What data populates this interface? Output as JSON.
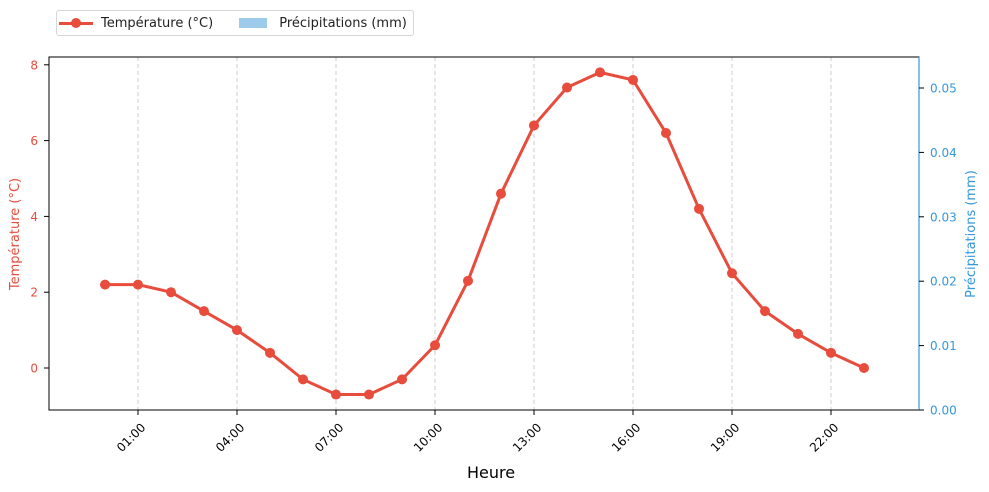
{
  "legend": {
    "items": [
      {
        "label": "Température (°C)",
        "type": "line-marker",
        "color": "#e74c3c"
      },
      {
        "label": "Précipitations (mm)",
        "type": "bar",
        "color": "#9ccbec"
      }
    ]
  },
  "colors": {
    "temperature": "#e74c3c",
    "precipitation": "#3498db",
    "precipitation_bar": "#9ccbec",
    "grid": "#cccccc"
  },
  "chart_data": {
    "type": "line",
    "title": "",
    "xlabel": "Heure",
    "ylabel": "Température (°C)",
    "ylabel_right": "Précipitations (mm)",
    "x": [
      "00:00",
      "01:00",
      "02:00",
      "03:00",
      "04:00",
      "05:00",
      "06:00",
      "07:00",
      "08:00",
      "09:00",
      "10:00",
      "11:00",
      "12:00",
      "13:00",
      "14:00",
      "15:00",
      "16:00",
      "17:00",
      "18:00",
      "19:00",
      "20:00",
      "21:00",
      "22:00",
      "23:00"
    ],
    "x_ticks": [
      "01:00",
      "04:00",
      "07:00",
      "10:00",
      "13:00",
      "16:00",
      "19:00",
      "22:00"
    ],
    "y_ticks": [
      0,
      2,
      4,
      6,
      8
    ],
    "y_right_ticks": [
      "0.00",
      "0.01",
      "0.02",
      "0.03",
      "0.04",
      "0.05"
    ],
    "ylim": [
      -1.1,
      8.25
    ],
    "ylim_right": [
      0,
      0.055
    ],
    "grid": {
      "x": true,
      "y": false,
      "style": "dashed"
    },
    "legend_position": "upper-left-outside",
    "series": [
      {
        "name": "Température (°C)",
        "type": "line",
        "axis": "left",
        "values": [
          2.2,
          2.2,
          2.0,
          1.5,
          1.0,
          0.4,
          -0.3,
          -0.7,
          -0.7,
          -0.3,
          0.6,
          2.3,
          4.6,
          6.4,
          7.4,
          7.8,
          7.6,
          6.2,
          4.2,
          2.5,
          1.5,
          0.9,
          0.4,
          0.0
        ]
      },
      {
        "name": "Précipitations (mm)",
        "type": "bar",
        "axis": "right",
        "values": [
          0,
          0,
          0,
          0,
          0,
          0,
          0,
          0,
          0,
          0,
          0,
          0,
          0,
          0,
          0,
          0,
          0,
          0,
          0,
          0,
          0,
          0,
          0,
          0
        ]
      }
    ]
  }
}
